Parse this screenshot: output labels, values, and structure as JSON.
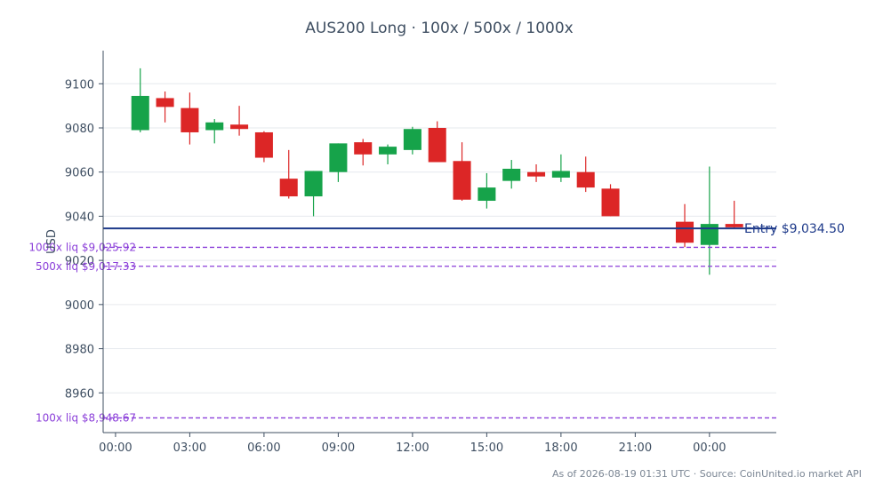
{
  "chart_data": {
    "type": "candlestick",
    "title": "AUS200 Long · 100x / 500x / 1000x",
    "ylabel": "USD",
    "xlabel": "",
    "ylim": [
      8942,
      9115
    ],
    "yticks": [
      8960,
      8980,
      9000,
      9020,
      9040,
      9060,
      9080,
      9100
    ],
    "x_range_hours": [
      -0.5,
      26.7
    ],
    "xticks": [
      {
        "label": "00:00",
        "hour": 0
      },
      {
        "label": "03:00",
        "hour": 3
      },
      {
        "label": "06:00",
        "hour": 6
      },
      {
        "label": "09:00",
        "hour": 9
      },
      {
        "label": "12:00",
        "hour": 12
      },
      {
        "label": "15:00",
        "hour": 15
      },
      {
        "label": "18:00",
        "hour": 18
      },
      {
        "label": "21:00",
        "hour": 21
      },
      {
        "label": "00:00",
        "hour": 24
      }
    ],
    "grid": true,
    "colors": {
      "up": "#16a34a",
      "down": "#dc2626",
      "entry": "#1e3a8a",
      "liq": "#8b3fd9"
    },
    "candles": [
      {
        "hour": 1,
        "open": 9079,
        "high": 9107,
        "low": 9078,
        "close": 9094.5
      },
      {
        "hour": 2,
        "open": 9093.5,
        "high": 9096.5,
        "low": 9082.5,
        "close": 9089.5
      },
      {
        "hour": 3,
        "open": 9089,
        "high": 9096,
        "low": 9072.5,
        "close": 9078
      },
      {
        "hour": 4,
        "open": 9079,
        "high": 9084,
        "low": 9073,
        "close": 9082.5
      },
      {
        "hour": 5,
        "open": 9081.5,
        "high": 9090,
        "low": 9076.5,
        "close": 9079.5
      },
      {
        "hour": 6,
        "open": 9078,
        "high": 9078.5,
        "low": 9064.5,
        "close": 9066.5
      },
      {
        "hour": 7,
        "open": 9057,
        "high": 9070,
        "low": 9048,
        "close": 9049
      },
      {
        "hour": 8,
        "open": 9049,
        "high": 9060.5,
        "low": 9040,
        "close": 9060.5
      },
      {
        "hour": 9,
        "open": 9060,
        "high": 9073,
        "low": 9055.5,
        "close": 9073
      },
      {
        "hour": 10,
        "open": 9073.5,
        "high": 9075,
        "low": 9063,
        "close": 9068
      },
      {
        "hour": 11,
        "open": 9068,
        "high": 9072.5,
        "low": 9063.5,
        "close": 9071.5
      },
      {
        "hour": 12,
        "open": 9070,
        "high": 9080.5,
        "low": 9068,
        "close": 9079.5
      },
      {
        "hour": 13,
        "open": 9080,
        "high": 9083,
        "low": 9064.5,
        "close": 9064.5
      },
      {
        "hour": 14,
        "open": 9065,
        "high": 9073.5,
        "low": 9047,
        "close": 9047.5
      },
      {
        "hour": 15,
        "open": 9047,
        "high": 9059.5,
        "low": 9043.5,
        "close": 9053
      },
      {
        "hour": 16,
        "open": 9056,
        "high": 9065.5,
        "low": 9052.5,
        "close": 9061.5
      },
      {
        "hour": 17,
        "open": 9060,
        "high": 9063.5,
        "low": 9055.5,
        "close": 9058
      },
      {
        "hour": 18,
        "open": 9057.5,
        "high": 9068,
        "low": 9055.5,
        "close": 9060.5
      },
      {
        "hour": 19,
        "open": 9060,
        "high": 9067,
        "low": 9051,
        "close": 9053
      },
      {
        "hour": 20,
        "open": 9052.5,
        "high": 9054.5,
        "low": 9040,
        "close": 9040
      },
      {
        "hour": 23,
        "open": 9037.5,
        "high": 9045.5,
        "low": 9026,
        "close": 9028
      },
      {
        "hour": 24,
        "open": 9027,
        "high": 9062.5,
        "low": 9013.5,
        "close": 9036.5
      },
      {
        "hour": 25,
        "open": 9036.5,
        "high": 9047,
        "low": 9034.5,
        "close": 9035
      }
    ],
    "entry": {
      "value": 9034.5,
      "label": "Entry $9,034.50"
    },
    "liquidations": [
      {
        "leverage": "1000x",
        "value": 9025.92,
        "label": "1000x liq $9,025.92"
      },
      {
        "leverage": "500x",
        "value": 9017.33,
        "label": "500x liq $9,017.33"
      },
      {
        "leverage": "100x",
        "value": 8948.67,
        "label": "100x liq $8,948.67"
      }
    ]
  },
  "footer": {
    "note": "As of 2026-08-19 01:31 UTC · Source: CoinUnited.io market API"
  }
}
